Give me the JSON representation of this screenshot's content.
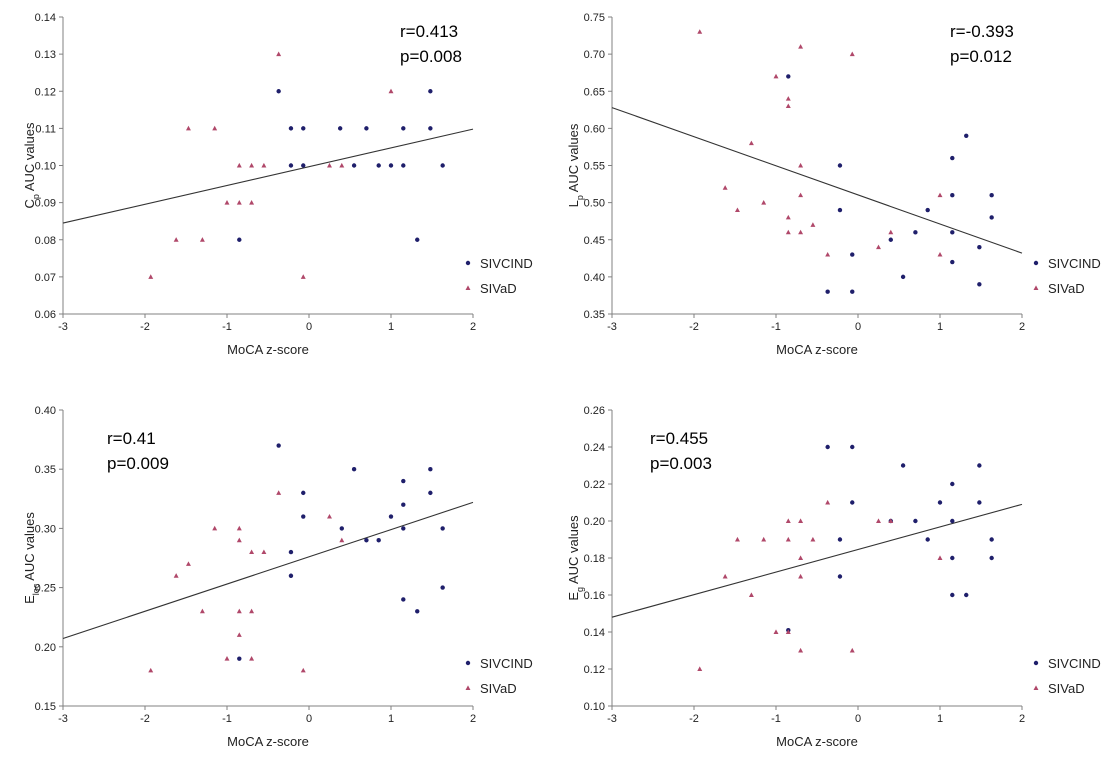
{
  "colors": {
    "SIVCIND": "#1f1f6b",
    "SIVaD": "#b0486a"
  },
  "chart_data": [
    {
      "type": "scatter",
      "panel": "top-left",
      "xlabel": "MoCA z-score",
      "ylabel_main": "C",
      "ylabel_sub": "p",
      "ylabel_rest": " AUC values",
      "xlim": [
        -3,
        2
      ],
      "ylim": [
        0.06,
        0.14
      ],
      "xticks": [
        -3,
        -2,
        -1,
        0,
        1,
        2
      ],
      "xtick_labels": [
        "-3",
        "-2",
        "-1",
        "0",
        "1",
        "2"
      ],
      "yticks": [
        0.06,
        0.07,
        0.08,
        0.09,
        0.1,
        0.11,
        0.12,
        0.13,
        0.14
      ],
      "ytick_labels": [
        "0.06",
        "0.07",
        "0.08",
        "0.09",
        "0.10",
        "0.11",
        "0.12",
        "0.13",
        "0.14"
      ],
      "stats": [
        "r=0.413",
        "p=0.008"
      ],
      "stats_position": "top-right",
      "legend": [
        "SIVCIND",
        "SIVaD"
      ],
      "fit_line": {
        "x": [
          -3,
          2
        ],
        "y": [
          0.0845,
          0.1098
        ]
      },
      "series": [
        {
          "name": "SIVCIND",
          "marker": "circle",
          "x": [
            -0.37,
            -0.22,
            -0.22,
            -0.07,
            -0.07,
            0.38,
            0.55,
            0.7,
            0.85,
            1.0,
            1.15,
            1.15,
            1.32,
            1.48,
            1.48,
            1.63,
            -0.85
          ],
          "y": [
            0.12,
            0.11,
            0.1,
            0.11,
            0.1,
            0.11,
            0.1,
            0.11,
            0.1,
            0.1,
            0.11,
            0.1,
            0.08,
            0.12,
            0.11,
            0.1,
            0.08
          ]
        },
        {
          "name": "SIVaD",
          "marker": "triangle",
          "x": [
            -1.93,
            -1.62,
            -1.47,
            -1.3,
            -1.15,
            -1.0,
            -0.85,
            -0.85,
            -0.7,
            -0.7,
            -0.55,
            -0.37,
            -0.07,
            0.25,
            0.4,
            1.0
          ],
          "y": [
            0.07,
            0.08,
            0.11,
            0.08,
            0.11,
            0.09,
            0.09,
            0.1,
            0.09,
            0.1,
            0.1,
            0.13,
            0.07,
            0.1,
            0.1,
            0.12
          ]
        }
      ]
    },
    {
      "type": "scatter",
      "panel": "top-right",
      "xlabel": "MoCA z-score",
      "ylabel_main": "L",
      "ylabel_sub": "p",
      "ylabel_rest": " AUC values",
      "xlim": [
        -3,
        2
      ],
      "ylim": [
        0.35,
        0.75
      ],
      "xticks": [
        -3,
        -2,
        -1,
        0,
        1,
        2
      ],
      "xtick_labels": [
        "-3",
        "-2",
        "-1",
        "0",
        "1",
        "2"
      ],
      "yticks": [
        0.35,
        0.4,
        0.45,
        0.5,
        0.55,
        0.6,
        0.65,
        0.7,
        0.75
      ],
      "ytick_labels": [
        "0.35",
        "0.40",
        "0.45",
        "0.50",
        "0.55",
        "0.60",
        "0.65",
        "0.70",
        "0.75"
      ],
      "stats": [
        "r=-0.393",
        "p=0.012"
      ],
      "stats_position": "top-right",
      "legend": [
        "SIVCIND",
        "SIVaD"
      ],
      "fit_line": {
        "x": [
          -3,
          2
        ],
        "y": [
          0.628,
          0.432
        ]
      },
      "series": [
        {
          "name": "SIVCIND",
          "marker": "circle",
          "x": [
            -0.85,
            -0.22,
            -0.22,
            -0.37,
            -0.07,
            -0.07,
            0.4,
            0.55,
            0.7,
            0.85,
            1.15,
            1.15,
            1.15,
            1.15,
            1.32,
            1.48,
            1.48,
            1.63,
            1.63
          ],
          "y": [
            0.67,
            0.55,
            0.49,
            0.38,
            0.43,
            0.38,
            0.45,
            0.4,
            0.46,
            0.49,
            0.56,
            0.51,
            0.46,
            0.42,
            0.59,
            0.44,
            0.39,
            0.51,
            0.48
          ]
        },
        {
          "name": "SIVaD",
          "marker": "triangle",
          "x": [
            -1.93,
            -1.62,
            -1.47,
            -1.3,
            -1.15,
            -1.0,
            -0.85,
            -0.85,
            -0.85,
            -0.85,
            -0.7,
            -0.7,
            -0.7,
            -0.7,
            -0.55,
            -0.37,
            -0.07,
            0.25,
            0.4,
            1.0,
            1.0
          ],
          "y": [
            0.73,
            0.52,
            0.49,
            0.58,
            0.5,
            0.67,
            0.64,
            0.63,
            0.48,
            0.46,
            0.71,
            0.55,
            0.51,
            0.46,
            0.47,
            0.43,
            0.7,
            0.44,
            0.46,
            0.51,
            0.43
          ]
        }
      ]
    },
    {
      "type": "scatter",
      "panel": "bottom-left",
      "xlabel": "MoCA z-score",
      "ylabel_main": "E",
      "ylabel_sub": "loc",
      "ylabel_rest": " AUC values",
      "xlim": [
        -3,
        2
      ],
      "ylim": [
        0.15,
        0.4
      ],
      "xticks": [
        -3,
        -2,
        -1,
        0,
        1,
        2
      ],
      "xtick_labels": [
        "-3",
        "-2",
        "-1",
        "0",
        "1",
        "2"
      ],
      "yticks": [
        0.15,
        0.2,
        0.25,
        0.3,
        0.35,
        0.4
      ],
      "ytick_labels": [
        "0.15",
        "0.20",
        "0.25",
        "0.30",
        "0.35",
        "0.40"
      ],
      "stats": [
        "r=0.41",
        "p=0.009"
      ],
      "stats_position": "top-left",
      "legend": [
        "SIVCIND",
        "SIVaD"
      ],
      "fit_line": {
        "x": [
          -3,
          2
        ],
        "y": [
          0.207,
          0.322
        ]
      },
      "series": [
        {
          "name": "SIVCIND",
          "marker": "circle",
          "x": [
            -0.37,
            -0.22,
            -0.22,
            -0.07,
            -0.07,
            0.4,
            0.55,
            0.7,
            0.85,
            1.0,
            1.15,
            1.15,
            1.15,
            1.15,
            1.32,
            1.48,
            1.48,
            1.63,
            1.63,
            -0.85
          ],
          "y": [
            0.37,
            0.28,
            0.26,
            0.33,
            0.31,
            0.3,
            0.35,
            0.29,
            0.29,
            0.31,
            0.34,
            0.32,
            0.3,
            0.24,
            0.23,
            0.35,
            0.33,
            0.3,
            0.25,
            0.19
          ]
        },
        {
          "name": "SIVaD",
          "marker": "triangle",
          "x": [
            -1.93,
            -1.62,
            -1.47,
            -1.3,
            -1.15,
            -1.0,
            -0.85,
            -0.85,
            -0.85,
            -0.85,
            -0.7,
            -0.7,
            -0.7,
            -0.55,
            -0.37,
            -0.07,
            0.25,
            0.4
          ],
          "y": [
            0.18,
            0.26,
            0.27,
            0.23,
            0.3,
            0.19,
            0.3,
            0.29,
            0.23,
            0.21,
            0.28,
            0.23,
            0.19,
            0.28,
            0.33,
            0.18,
            0.31,
            0.29
          ]
        }
      ]
    },
    {
      "type": "scatter",
      "panel": "bottom-right",
      "xlabel": "MoCA z-score",
      "ylabel_main": "E",
      "ylabel_sub": "g",
      "ylabel_rest": " AUC values",
      "xlim": [
        -3,
        2
      ],
      "ylim": [
        0.1,
        0.26
      ],
      "xticks": [
        -3,
        -2,
        -1,
        0,
        1,
        2
      ],
      "xtick_labels": [
        "-3",
        "-2",
        "-1",
        "0",
        "1",
        "2"
      ],
      "yticks": [
        0.1,
        0.12,
        0.14,
        0.16,
        0.18,
        0.2,
        0.22,
        0.24,
        0.26
      ],
      "ytick_labels": [
        "0.10",
        "0.12",
        "0.14",
        "0.16",
        "0.18",
        "0.20",
        "0.22",
        "0.24",
        "0.26"
      ],
      "stats": [
        "r=0.455",
        "p=0.003"
      ],
      "stats_position": "top-left",
      "legend": [
        "SIVCIND",
        "SIVaD"
      ],
      "fit_line": {
        "x": [
          -3,
          2
        ],
        "y": [
          0.148,
          0.209
        ]
      },
      "series": [
        {
          "name": "SIVCIND",
          "marker": "circle",
          "x": [
            -0.85,
            -0.37,
            -0.22,
            -0.22,
            -0.07,
            -0.07,
            0.4,
            0.55,
            0.7,
            0.85,
            1.0,
            1.15,
            1.15,
            1.15,
            1.15,
            1.32,
            1.48,
            1.48,
            1.63,
            1.63
          ],
          "y": [
            0.141,
            0.24,
            0.19,
            0.17,
            0.24,
            0.21,
            0.2,
            0.23,
            0.2,
            0.19,
            0.21,
            0.22,
            0.2,
            0.18,
            0.16,
            0.16,
            0.23,
            0.21,
            0.19,
            0.18
          ]
        },
        {
          "name": "SIVaD",
          "marker": "triangle",
          "x": [
            -1.93,
            -1.62,
            -1.47,
            -1.3,
            -1.15,
            -1.0,
            -0.85,
            -0.85,
            -0.85,
            -0.7,
            -0.7,
            -0.7,
            -0.7,
            -0.55,
            -0.37,
            -0.07,
            0.25,
            0.4,
            1.0
          ],
          "y": [
            0.12,
            0.17,
            0.19,
            0.16,
            0.19,
            0.14,
            0.2,
            0.19,
            0.14,
            0.2,
            0.18,
            0.17,
            0.13,
            0.19,
            0.21,
            0.13,
            0.2,
            0.2,
            0.18
          ]
        }
      ]
    }
  ]
}
